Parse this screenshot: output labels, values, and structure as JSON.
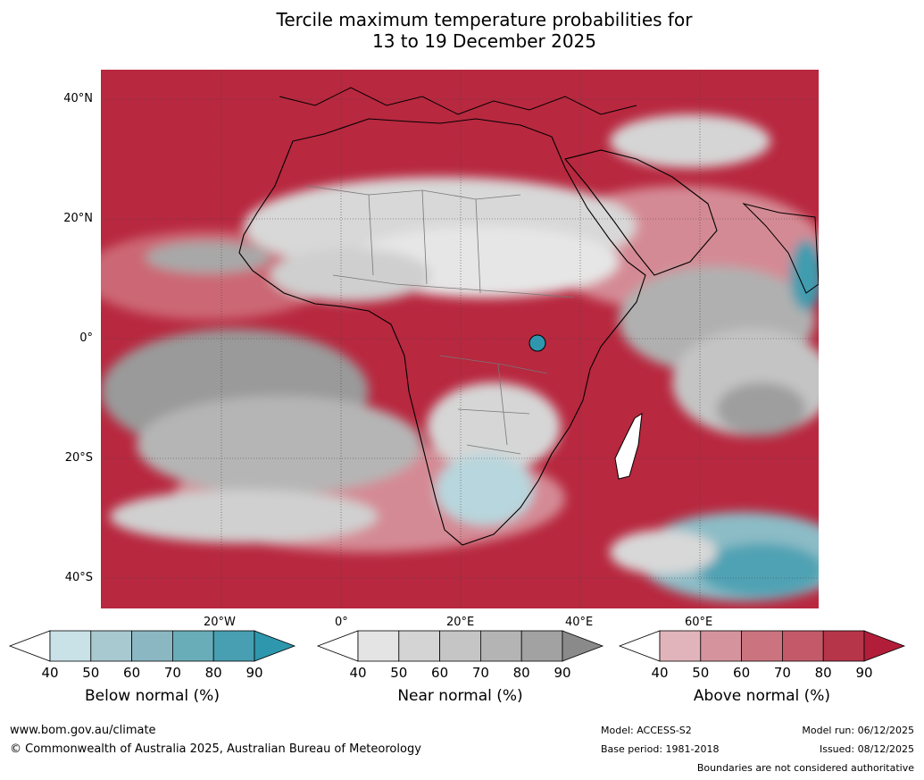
{
  "title_line1": "Tercile maximum temperature probabilities for",
  "title_line2": "13 to 19 December 2025",
  "lat_labels": [
    "40°N",
    "20°N",
    "0°",
    "20°S",
    "40°S"
  ],
  "lon_labels": [
    "20°W",
    "0°",
    "20°E",
    "40°E",
    "60°E"
  ],
  "colorbars": [
    {
      "label": "Below normal (%)",
      "ticks": [
        "40",
        "50",
        "60",
        "70",
        "80",
        "90"
      ],
      "colors": [
        "#c9e2e8",
        "#a9c9d0",
        "#8ab7c2",
        "#69adb9",
        "#479fb1",
        "#2e97ad"
      ]
    },
    {
      "label": "Near normal (%)",
      "ticks": [
        "40",
        "50",
        "60",
        "70",
        "80",
        "90"
      ],
      "colors": [
        "#e4e4e4",
        "#d4d4d4",
        "#c5c5c5",
        "#b4b4b4",
        "#a2a2a2",
        "#8a8a8a"
      ]
    },
    {
      "label": "Above normal (%)",
      "ticks": [
        "40",
        "50",
        "60",
        "70",
        "80",
        "90"
      ],
      "colors": [
        "#e0b4ba",
        "#d5949d",
        "#cc7380",
        "#c45a69",
        "#b73549",
        "#b21e3a"
      ]
    }
  ],
  "footer": {
    "website": "www.bom.gov.au/climate",
    "copyright": "© Commonwealth of Australia 2025, Australian Bureau of Meteorology",
    "model": "Model: ACCESS-S2",
    "base_period": "Base period: 1981-2018",
    "model_run": "Model run: 06/12/2025",
    "issued": "Issued: 08/12/2025",
    "disclaimer": "Boundaries are not considered authoritative"
  }
}
